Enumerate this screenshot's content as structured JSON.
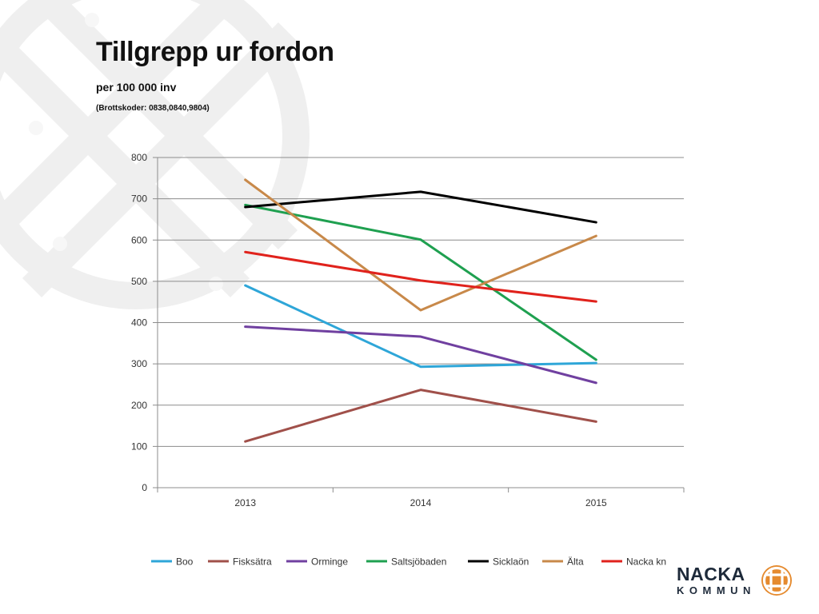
{
  "slide": {
    "title": "Tillgrepp ur fordon",
    "subtitle": "per 100 000 inv",
    "note": "(Brottskoder: 0838,0840,9804)"
  },
  "logo": {
    "line1": "NACKA",
    "line2": "KOMMUN",
    "icon": "nacka-cross-emblem",
    "color": "#e58a2e"
  },
  "colors": {
    "watermark": "#efefef",
    "grid": "#8c8c8c"
  },
  "chart_data": {
    "type": "line",
    "categories": [
      "2013",
      "2014",
      "2015"
    ],
    "ylim": [
      0,
      800
    ],
    "yticks": [
      0,
      100,
      200,
      300,
      400,
      500,
      600,
      700,
      800
    ],
    "grid": true,
    "legend_position": "bottom",
    "series": [
      {
        "name": "Boo",
        "color": "#2ea6d8",
        "values": [
          490,
          293,
          302
        ]
      },
      {
        "name": "Fisksätra",
        "color": "#a0504a",
        "values": [
          112,
          237,
          160
        ]
      },
      {
        "name": "Orminge",
        "color": "#7040a0",
        "values": [
          390,
          366,
          254
        ]
      },
      {
        "name": "Saltsjöbaden",
        "color": "#1fa050",
        "values": [
          685,
          601,
          310
        ]
      },
      {
        "name": "Sicklaön",
        "color": "#000000",
        "values": [
          680,
          717,
          643
        ]
      },
      {
        "name": "Älta",
        "color": "#c8894a",
        "values": [
          746,
          430,
          610
        ]
      },
      {
        "name": "Nacka kn",
        "color": "#e0221c",
        "values": [
          571,
          502,
          451
        ]
      }
    ]
  }
}
